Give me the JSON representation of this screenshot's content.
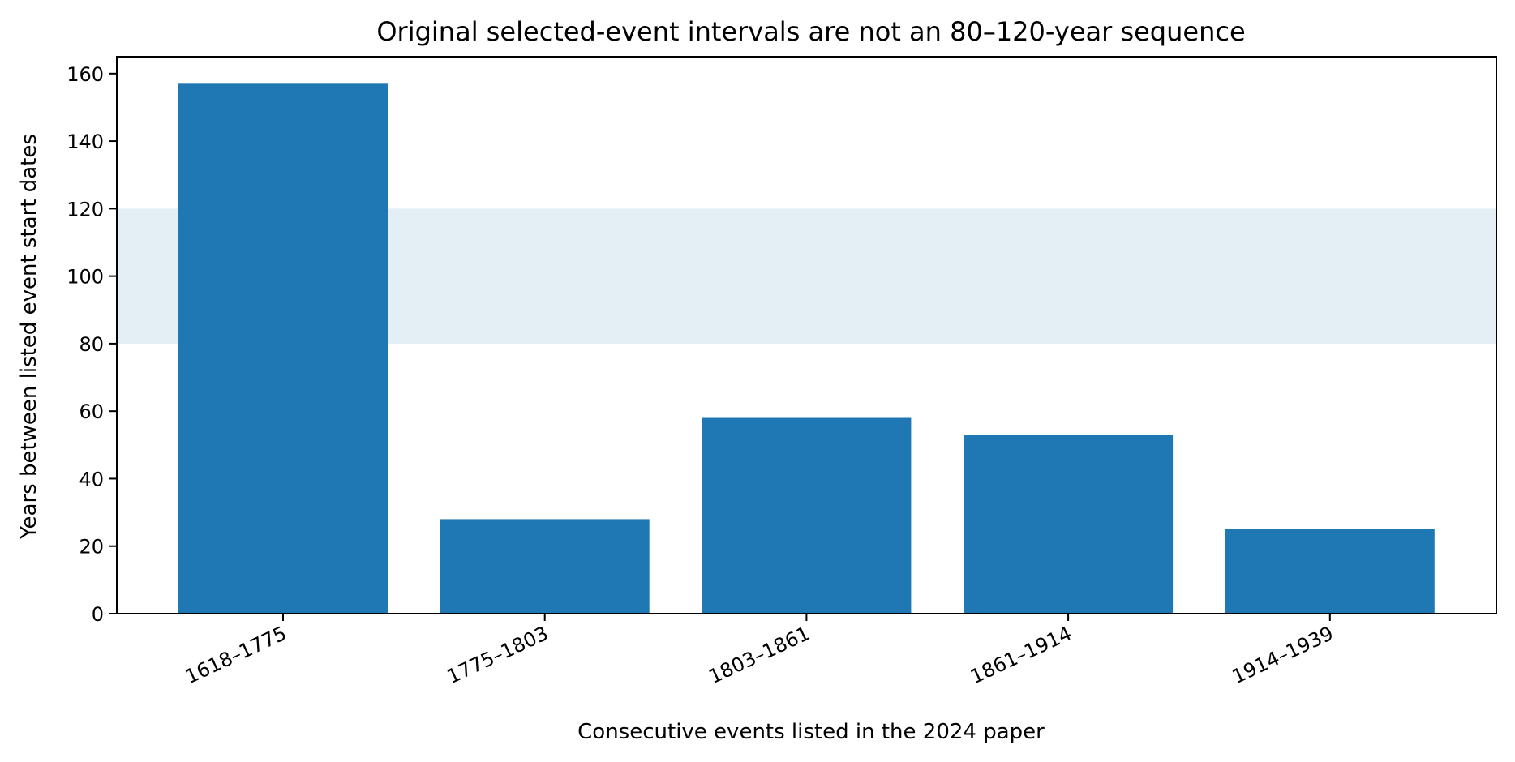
{
  "chart_data": {
    "type": "bar",
    "title": "Original selected-event intervals are not an 80–120-year sequence",
    "xlabel": "Consecutive events listed in the 2024 paper",
    "ylabel": "Years between listed event start dates",
    "categories": [
      "1618–1775",
      "1775–1803",
      "1803–1861",
      "1861–1914",
      "1914–1939"
    ],
    "values": [
      157,
      28,
      58,
      53,
      25
    ],
    "ylim": [
      0,
      165
    ],
    "yticks": [
      0,
      20,
      40,
      60,
      80,
      100,
      120,
      140,
      160
    ],
    "shaded_band": [
      80,
      120
    ],
    "grid": false,
    "colors": {
      "bar": "#1f77b4",
      "band": "#e4eef5",
      "axis": "#000000"
    }
  }
}
